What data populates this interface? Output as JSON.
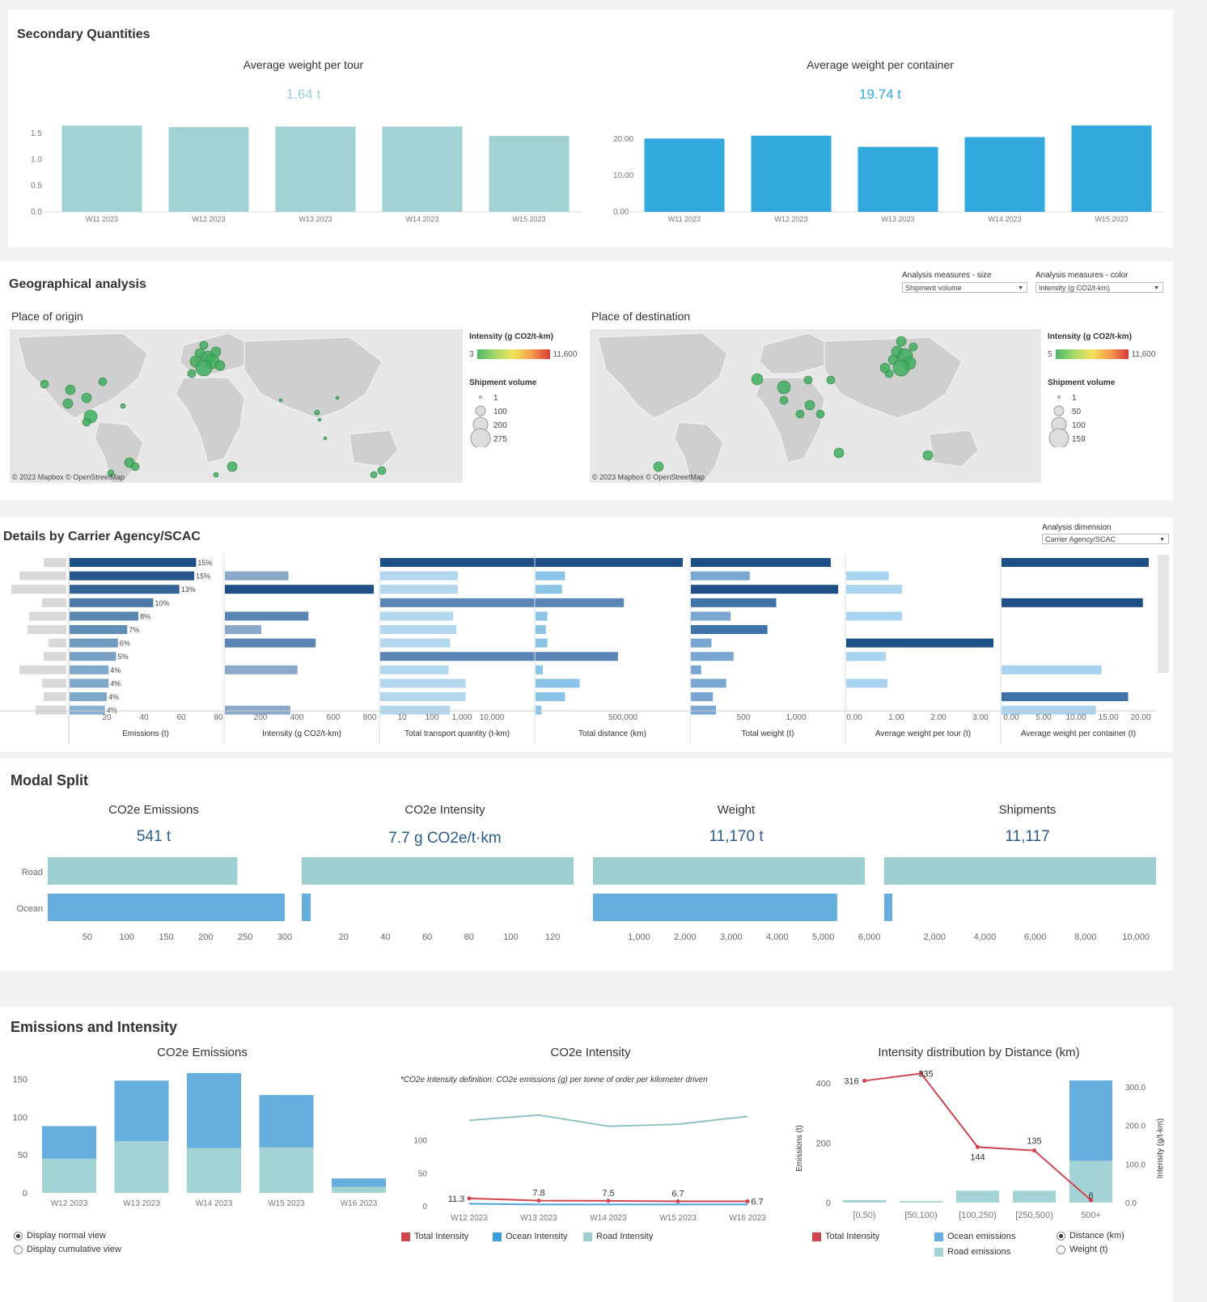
{
  "secondary": {
    "title": "Secondary Quantities",
    "tour": {
      "title": "Average weight per tour",
      "kpi": "1.64 t",
      "ticks": [
        "1.5",
        "1.0",
        "0.5",
        "0.0"
      ],
      "categories": [
        "W11 2023",
        "W12 2023",
        "W13 2023",
        "W14 2023",
        "W15 2023"
      ],
      "values": [
        1.65,
        1.62,
        1.63,
        1.63,
        1.45
      ],
      "ymax": 1.7,
      "color": "#a1d1d3"
    },
    "container": {
      "title": "Average weight per container",
      "kpi": "19.74 t",
      "ticks": [
        "20.00",
        "10.00",
        "0.00"
      ],
      "categories": [
        "W11 2023",
        "W12 2023",
        "W13 2023",
        "W14 2023",
        "W15 2023"
      ],
      "values": [
        20.2,
        21.0,
        17.9,
        20.6,
        23.8
      ],
      "ymax": 24.5,
      "color": "#33a8dc"
    }
  },
  "geo": {
    "title": "Geographical analysis",
    "size_label": "Analysis measures - size",
    "size_value": "Shipment volume",
    "color_label": "Analysis measures - color",
    "color_value": "Intensity (g CO2/t-km)",
    "origin": {
      "title": "Place of origin",
      "legend_title": "Intensity (g CO2/t-km)",
      "min": "3",
      "max": "11,600",
      "size_title": "Shipment volume",
      "sizes": [
        "1",
        "100",
        "200",
        "275"
      ]
    },
    "destination": {
      "title": "Place of destination",
      "legend_title": "Intensity (g CO2/t-km)",
      "min": "5",
      "max": "11,600",
      "size_title": "Shipment volume",
      "sizes": [
        "1",
        "50",
        "100",
        "159"
      ]
    },
    "credit": "© 2023 Mapbox  © OpenStreetMap"
  },
  "details": {
    "title": "Details by Carrier Agency/SCAC",
    "dim_label": "Analysis dimension",
    "dim_value": "Carrier Agency/SCAC",
    "emissions_pct": [
      "15%",
      "15%",
      "13%",
      "10%",
      "8%",
      "7%",
      "6%",
      "5%",
      "4%",
      "4%",
      "4%",
      "4%"
    ],
    "emissions_values": [
      68,
      67,
      59,
      45,
      37,
      31,
      26,
      25,
      21,
      21,
      20,
      19
    ],
    "emissions_color_levels": [
      1.0,
      0.95,
      0.85,
      0.7,
      0.6,
      0.55,
      0.45,
      0.4,
      0.35,
      0.35,
      0.35,
      0.3
    ],
    "emissions_ticks": [
      "20",
      "40",
      "60",
      "80"
    ],
    "emissions_label": "Emissions (t)",
    "intensity_values": [
      0,
      350,
      820,
      0,
      460,
      200,
      500,
      0,
      400,
      0,
      0,
      360
    ],
    "intensity_ticks": [
      "200",
      "400",
      "600",
      "800"
    ],
    "intensity_label": "Intensity (g CO2/t-km)",
    "tkm_ticks": [
      "10",
      "100",
      "1,000",
      "10,000"
    ],
    "tkm_label": "Total transport quantity (t-km)",
    "distance_ticks": [
      "500,000"
    ],
    "distance_label": "Total distance (km)",
    "weight_ticks": [
      "500",
      "1,000"
    ],
    "weight_label": "Total weight (t)",
    "tour_ticks": [
      "0.00",
      "1.00",
      "2.00",
      "3.00"
    ],
    "tour_label": "Average weight per tour (t)",
    "container_ticks": [
      "0.00",
      "5.00",
      "10.00",
      "15.00",
      "20.00"
    ],
    "container_label": "Average weight per container (t)"
  },
  "modal": {
    "title": "Modal Split",
    "categories": [
      "Road",
      "Ocean"
    ],
    "emissions": {
      "title": "CO2e Emissions",
      "kpi": "541 t",
      "values": [
        240,
        300
      ],
      "max": 300,
      "ticks": [
        "50",
        "100",
        "150",
        "200",
        "250",
        "300"
      ]
    },
    "intensity": {
      "title": "CO2e Intensity",
      "kpi": "7.7 g CO2e/t·km",
      "values": [
        130,
        4.3
      ],
      "max": 130,
      "ticks": [
        "20",
        "40",
        "60",
        "80",
        "100",
        "120"
      ]
    },
    "weight": {
      "title": "Weight",
      "kpi": "11,170 t",
      "values": [
        5900,
        5300
      ],
      "max": 5900,
      "ticks": [
        "1,000",
        "2,000",
        "3,000",
        "4,000",
        "5,000",
        "6,000"
      ]
    },
    "shipments": {
      "title": "Shipments",
      "kpi": "11,117",
      "values": [
        10800,
        320
      ],
      "max": 10800,
      "ticks": [
        "2,000",
        "4,000",
        "6,000",
        "8,000",
        "10,000"
      ]
    },
    "road_color": "#9ecfd0",
    "ocean_color": "#66aede"
  },
  "emi": {
    "title": "Emissions and Intensity",
    "emissions": {
      "title": "CO2e Emissions",
      "categories": [
        "W12 2023",
        "W13 2023",
        "W14 2023",
        "W15 2023",
        "W16 2023"
      ],
      "road": [
        45,
        68,
        59,
        60,
        8
      ],
      "ocean": [
        43,
        80,
        99,
        69,
        11
      ],
      "ticks": [
        "150",
        "100",
        "50",
        "0"
      ],
      "ymax": 160,
      "radio_normal": "Display normal view",
      "radio_cumulative": "Display cumulative view"
    },
    "intensity": {
      "title": "CO2e Intensity",
      "note": "*CO2e Intensity definition: CO2e emissions (g) per tonne of order per kilometer driven",
      "categories": [
        "W12 2023",
        "W13 2023",
        "W14 2023",
        "W15 2023",
        "W16 2023"
      ],
      "total": [
        11.3,
        7.8,
        7.5,
        6.7,
        6.7
      ],
      "total_labels": [
        "11.3",
        "7.8",
        "7.5",
        "6.7",
        "6.7"
      ],
      "road": [
        130,
        138,
        121,
        124,
        136
      ],
      "ocean": [
        3,
        2,
        2,
        2,
        2
      ],
      "ticks": [
        "100",
        "50",
        "0"
      ],
      "ymax": 155,
      "legend": [
        "Total Intensity",
        "Ocean Intensity",
        "Road Intensity"
      ]
    },
    "distance": {
      "title": "Intensity distribution by Distance (km)",
      "categories": [
        "[0,50)",
        "[50,100)",
        "[100,250)",
        "[250,500)",
        "500+"
      ],
      "ocean_emissions": [
        0,
        0,
        0,
        0,
        410
      ],
      "road_emissions": [
        8,
        5,
        40,
        40,
        140
      ],
      "intensity": [
        316,
        335,
        144,
        135,
        6
      ],
      "intensity_labels": [
        "316",
        "335",
        "144",
        "135",
        "6"
      ],
      "left_ticks": [
        "400",
        "200",
        "0"
      ],
      "right_ticks": [
        "300.0",
        "200.0",
        "100.0",
        "0.0"
      ],
      "left_label": "Emissions (t)",
      "right_label": "Intensity (g/t-km)",
      "left_max": 440,
      "right_max": 340,
      "legend_total": "Total Intensity",
      "legend_ocean": "Ocean emissions",
      "legend_road": "Road emissions",
      "radio_distance": "Distance (km)",
      "radio_weight": "Weight (t)"
    },
    "colors": {
      "total": "#d0454e",
      "ocean": "#4aa3dd",
      "road": "#9ecfd0",
      "ocean_bar": "#66aede",
      "road_bar": "#a3d3d4"
    }
  }
}
